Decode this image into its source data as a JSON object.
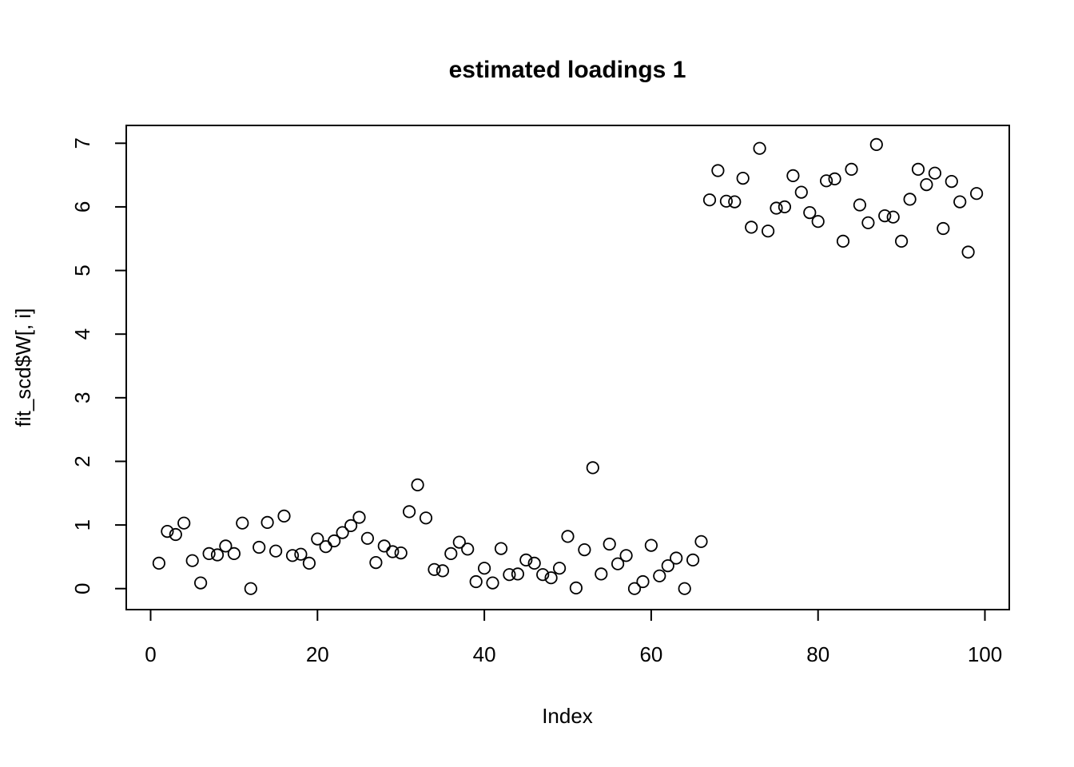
{
  "figure": {
    "background_color": "#ffffff",
    "foreground_color": "#000000"
  },
  "chart_data": {
    "type": "scatter",
    "title": "estimated loadings 1",
    "xlabel": "Index",
    "ylabel": "fit_scd$W[, i]",
    "marker": "open-circle",
    "grid": false,
    "legend": "none",
    "n_points": 99,
    "x_description": "Index values 1 to 99 (implicit 1:n as in R plot())",
    "x_ticks": [
      0,
      20,
      40,
      60,
      80,
      100
    ],
    "y_ticks": [
      0,
      1,
      2,
      3,
      4,
      5,
      6,
      7
    ],
    "xlim": [
      -2.92,
      102.92
    ],
    "ylim": [
      -0.33,
      7.28
    ],
    "values": [
      0.4,
      0.9,
      0.85,
      1.03,
      0.44,
      0.09,
      0.55,
      0.53,
      0.67,
      0.55,
      1.03,
      0.0,
      0.65,
      1.04,
      0.59,
      1.14,
      0.52,
      0.54,
      0.4,
      0.78,
      0.66,
      0.75,
      0.88,
      0.99,
      1.12,
      0.79,
      0.41,
      0.67,
      0.58,
      0.56,
      1.21,
      1.63,
      1.11,
      0.3,
      0.28,
      0.55,
      0.73,
      0.62,
      0.11,
      0.32,
      0.09,
      0.63,
      0.22,
      0.23,
      0.45,
      0.4,
      0.22,
      0.17,
      0.32,
      0.82,
      0.01,
      0.61,
      1.9,
      0.23,
      0.7,
      0.39,
      0.52,
      0.0,
      0.11,
      0.68,
      0.2,
      0.36,
      0.48,
      0.0,
      0.45,
      0.74,
      6.11,
      6.57,
      6.09,
      6.08,
      6.45,
      5.68,
      6.92,
      5.62,
      5.98,
      6.0,
      6.49,
      6.23,
      5.91,
      5.77,
      6.41,
      6.44,
      5.46,
      6.59,
      6.03,
      5.75,
      6.98,
      5.86,
      5.84,
      5.46,
      6.12,
      6.59,
      6.35,
      6.53,
      5.66,
      6.4,
      6.08,
      5.29,
      6.21
    ]
  }
}
